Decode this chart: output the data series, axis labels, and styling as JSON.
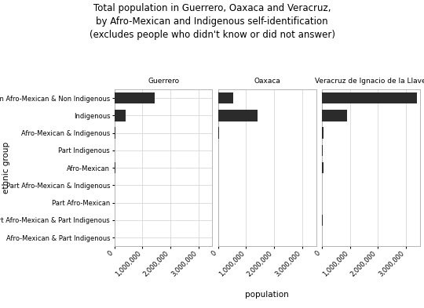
{
  "title": "Total population in Guerrero, Oaxaca and Veracruz,\nby Afro-Mexican and Indigenous self-identification\n(excludes people who didn't know or did not answer)",
  "xlabel": "population",
  "ylabel": "ethnic group",
  "categories": [
    "Non Afro-Mexican & Non Indigenous",
    "Indigenous",
    "Afro-Mexican & Indigenous",
    "Part Indigenous",
    "Afro-Mexican",
    "Part Afro-Mexican & Indigenous",
    "Part Afro-Mexican",
    "Part Afro-Mexican & Part Indigenous",
    "Afro-Mexican & Part Indigenous"
  ],
  "states": [
    "Guerrero",
    "Oaxaca",
    "Veracruz de Ignacio de la Llave"
  ],
  "data": {
    "Guerrero": [
      1450000,
      400000,
      30000,
      5000,
      20000,
      3000,
      2000,
      1000,
      500
    ],
    "Oaxaca": [
      550000,
      1400000,
      35000,
      10000,
      5000,
      8000,
      2000,
      1500,
      500
    ],
    "Veracruz de Ignacio de la Llave": [
      3400000,
      900000,
      60000,
      40000,
      55000,
      5000,
      3000,
      15000,
      1000
    ]
  },
  "bar_color": "#2b2b2b",
  "background_color": "#ffffff",
  "panel_facecolor": "#ffffff",
  "strip_color": "#d9d9d9",
  "xlim": [
    0,
    3500000
  ],
  "xticks": [
    0,
    1000000,
    2000000,
    3000000
  ],
  "xticklabels": [
    "0",
    "1,000,000",
    "2,000,000",
    "3,000,000"
  ],
  "grid_color": "#d0d0d0",
  "title_fontsize": 8.5,
  "axis_label_fontsize": 7.5,
  "tick_fontsize": 6,
  "strip_fontsize": 6.5,
  "ytick_fontsize": 6
}
